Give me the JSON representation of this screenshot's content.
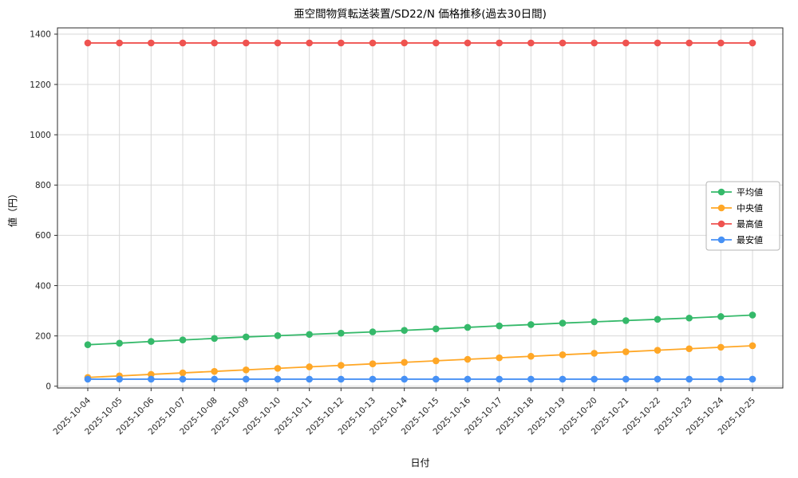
{
  "figure": {
    "title": "亜空間物質転送装置/SD22/N 価格推移(過去30日間)",
    "xlabel": "日付",
    "ylabel": "値（円）"
  },
  "chart_data": {
    "type": "line",
    "title": "亜空間物質転送装置/SD22/N 価格推移(過去30日間)",
    "xlabel": "日付",
    "ylabel": "値（円）",
    "ylim": [
      0,
      1400
    ],
    "yticks": [
      0,
      200,
      400,
      600,
      800,
      1000,
      1200,
      1400
    ],
    "grid": true,
    "legend_position": "right",
    "colors": {
      "grid": "#d8d8d8",
      "axis_border": "#2b2b2b",
      "tick_text": "#262626",
      "legend_border": "#b5b5b5"
    },
    "categories": [
      "2025-10-04",
      "2025-10-05",
      "2025-10-06",
      "2025-10-07",
      "2025-10-08",
      "2025-10-09",
      "2025-10-10",
      "2025-10-11",
      "2025-10-12",
      "2025-10-13",
      "2025-10-14",
      "2025-10-15",
      "2025-10-16",
      "2025-10-17",
      "2025-10-18",
      "2025-10-19",
      "2025-10-20",
      "2025-10-21",
      "2025-10-22",
      "2025-10-23",
      "2025-10-24",
      "2025-10-25"
    ],
    "series": [
      {
        "name": "平均値",
        "color": "#35b96a",
        "values": [
          165,
          171,
          178,
          184,
          190,
          196,
          201,
          206,
          211,
          216,
          222,
          228,
          234,
          240,
          245,
          251,
          256,
          261,
          266,
          271,
          277,
          283
        ]
      },
      {
        "name": "中央値",
        "color": "#ffa726",
        "values": [
          35,
          41,
          47,
          53,
          59,
          65,
          71,
          77,
          83,
          89,
          95,
          101,
          107,
          113,
          119,
          125,
          131,
          137,
          143,
          149,
          155,
          161
        ]
      },
      {
        "name": "最高値",
        "color": "#ef5350",
        "values": [
          1365,
          1365,
          1365,
          1365,
          1365,
          1365,
          1365,
          1365,
          1365,
          1365,
          1365,
          1365,
          1365,
          1365,
          1365,
          1365,
          1365,
          1365,
          1365,
          1365,
          1365,
          1365
        ]
      },
      {
        "name": "最安値",
        "color": "#4791f5",
        "values": [
          28,
          28,
          28,
          28,
          28,
          28,
          28,
          28,
          28,
          28,
          28,
          28,
          28,
          28,
          28,
          28,
          28,
          28,
          28,
          28,
          28,
          28
        ]
      }
    ]
  }
}
